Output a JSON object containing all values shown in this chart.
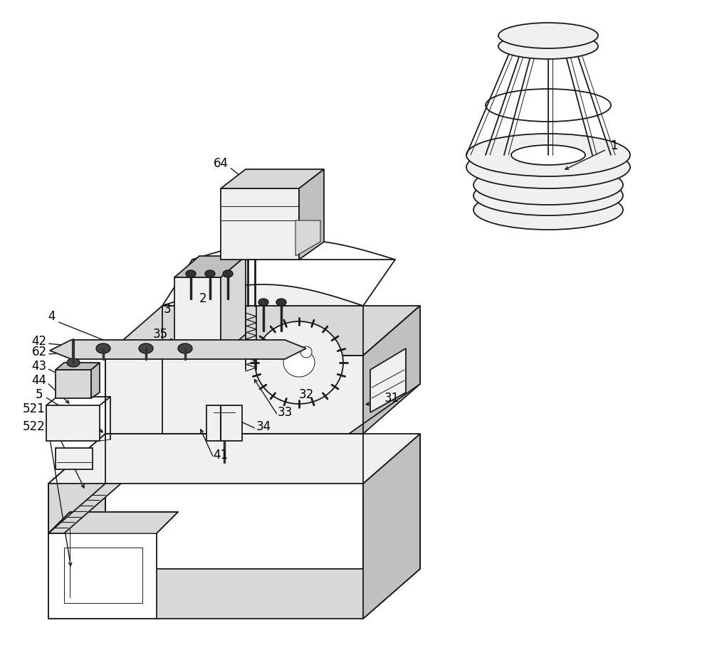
{
  "bg_color": "#ffffff",
  "lc": "#1a1a1a",
  "figsize": [
    10.0,
    9.38
  ],
  "dpi": 100,
  "lw_main": 1.3,
  "lw_thin": 0.7,
  "lw_thick": 2.0,
  "gray_light": "#f0f0f0",
  "gray_mid": "#d8d8d8",
  "gray_dark": "#c0c0c0",
  "white": "#ffffff"
}
